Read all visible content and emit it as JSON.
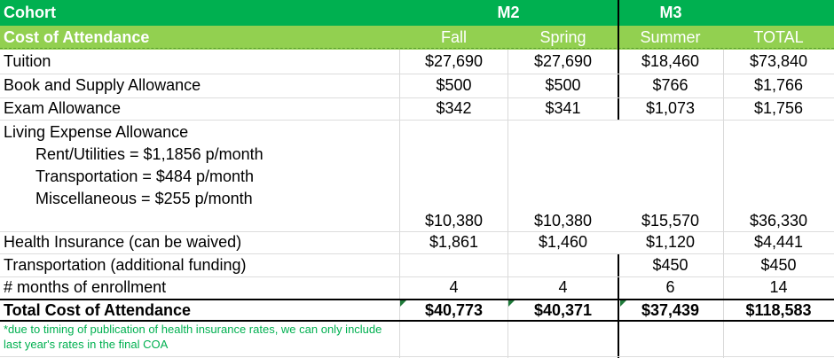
{
  "header": {
    "cohort_label": "Cohort",
    "m2_label": "M2",
    "m3_label": "M3"
  },
  "subheader": {
    "label": "Cost of Attendance",
    "columns": [
      "Fall",
      "Spring",
      "Summer",
      "TOTAL"
    ]
  },
  "rows": {
    "tuition": {
      "label": "Tuition",
      "values": [
        "$27,690",
        "$27,690",
        "$18,460",
        "$73,840"
      ]
    },
    "books": {
      "label": "Book and Supply Allowance",
      "values": [
        "$500",
        "$500",
        "$766",
        "$1,766"
      ]
    },
    "exam": {
      "label": "Exam Allowance",
      "values": [
        "$342",
        "$341",
        "$1,073",
        "$1,756"
      ]
    },
    "living": {
      "label": "Living Expense Allowance",
      "rent": "Rent/Utilities = $1,1856 p/month",
      "transport": "Transportation = $484 p/month",
      "misc": "Miscellaneous = $255 p/month",
      "values": [
        "$10,380",
        "$10,380",
        "$15,570",
        "$36,330"
      ]
    },
    "health": {
      "label": "Health Insurance (can be waived)",
      "values": [
        "$1,861",
        "$1,460",
        "$1,120",
        "$4,441"
      ]
    },
    "transport_add": {
      "label": "Transportation (additional funding)",
      "values": [
        "",
        "",
        "$450",
        "$450"
      ]
    },
    "months": {
      "label": "# months of enrollment",
      "values": [
        "4",
        "4",
        "6",
        "14"
      ]
    },
    "total": {
      "label": "Total Cost of Attendance",
      "values": [
        "$40,773",
        "$40,371",
        "$37,439",
        "$118,583"
      ]
    }
  },
  "footnote": "*due to timing of publication of health insurance rates, we can only include last year's rates in the final COA",
  "colors": {
    "header_green": "#00b050",
    "subheader_green": "#92d050",
    "note_green": "#00b050"
  }
}
